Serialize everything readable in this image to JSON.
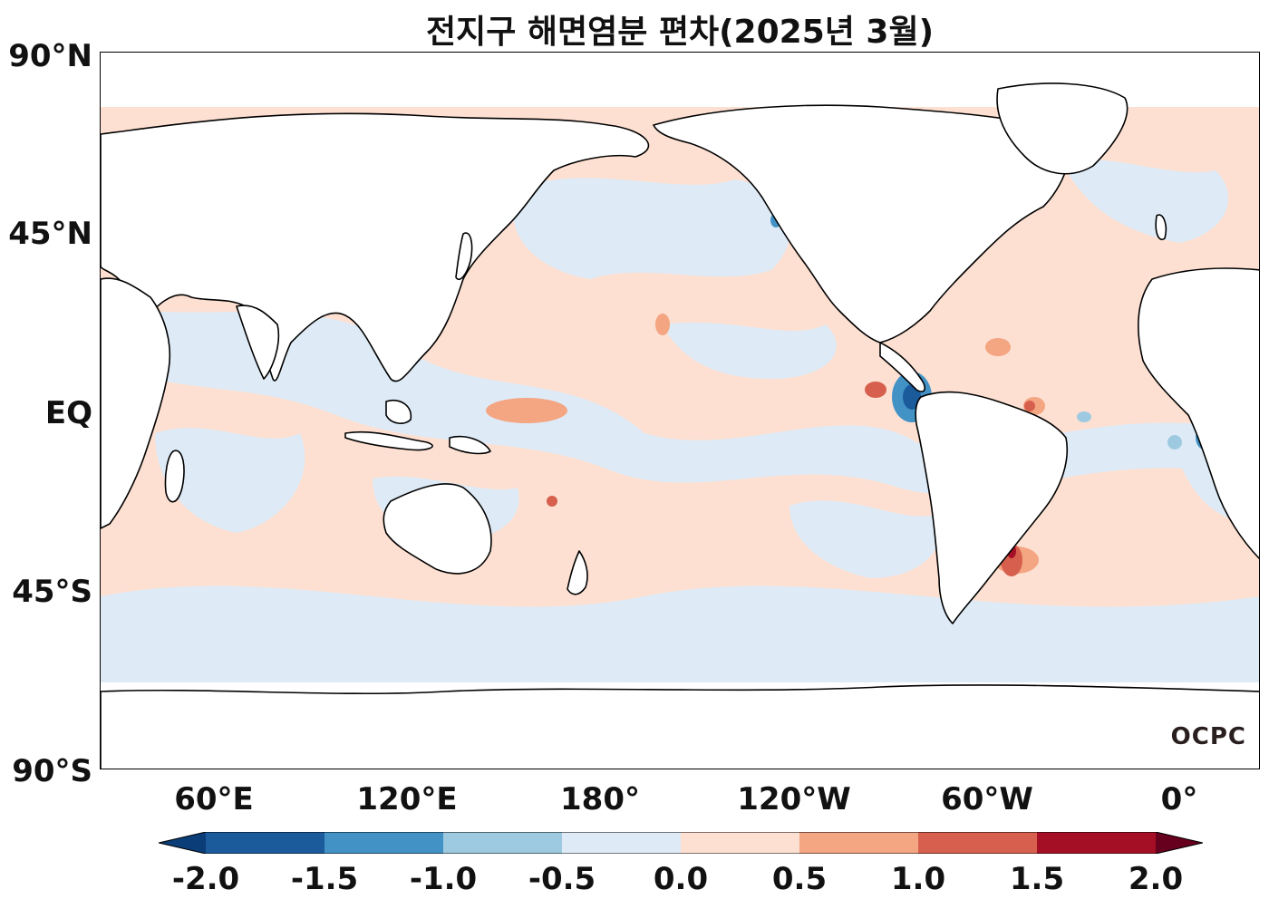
{
  "title": "전지구 해면염분 편차(2025년 3월)",
  "y_axis_labels": [
    "90°N",
    "45°N",
    "EQ",
    "45°S",
    "90°S"
  ],
  "x_axis_labels": [
    "60°E",
    "120°E",
    "180°",
    "120°W",
    "60°W",
    "0°"
  ],
  "colorbar": {
    "tick_labels": [
      "-2.0",
      "-1.5",
      "-1.0",
      "-0.5",
      "0.0",
      "0.5",
      "1.0",
      "1.5",
      "2.0"
    ],
    "colors": [
      "#0b3d78",
      "#1b5b9c",
      "#4292c6",
      "#9ecae1",
      "#deebf7",
      "#fde0d2",
      "#f4a582",
      "#d6604d",
      "#a50f25",
      "#67001f"
    ]
  },
  "logo_text": "OCPC",
  "colors": {
    "land": "#ffffff",
    "coastline": "#000000",
    "ocean_positive_weak": "#fde0d2",
    "ocean_negative_weak": "#deebf7"
  }
}
